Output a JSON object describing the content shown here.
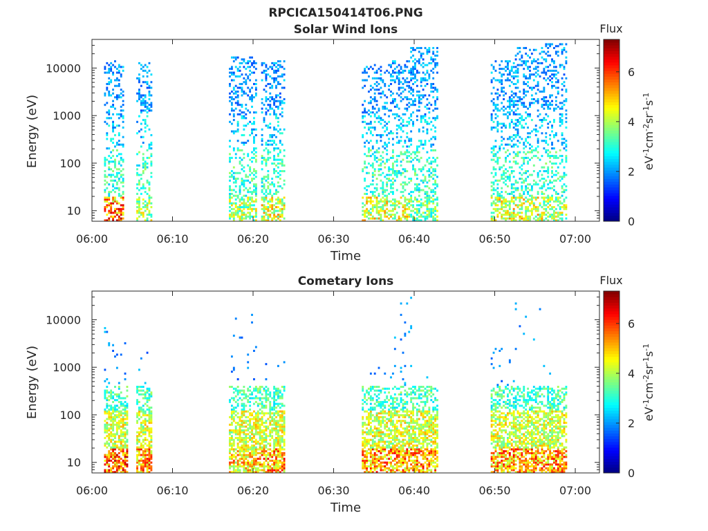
{
  "figure": {
    "title": "RPCICA150414T06.PNG"
  },
  "chart_data": [
    {
      "type": "heatmap",
      "title": "Solar Wind Ions",
      "xlabel": "Time",
      "ylabel": "Energy (eV)",
      "xlim": [
        "06:00",
        "07:03"
      ],
      "ylim": [
        6,
        40000
      ],
      "yscale": "log",
      "xticks": [
        "06:00",
        "06:10",
        "06:20",
        "06:30",
        "06:40",
        "06:50",
        "07:00"
      ],
      "yticks": [
        "10",
        "100",
        "1000",
        "10000"
      ],
      "colorbar": {
        "label": "Flux",
        "units": "eV-1cm-2sr-1s-1",
        "range": [
          0,
          7.3
        ],
        "ticks": [
          "0",
          "2",
          "4",
          "6"
        ]
      },
      "bursts": [
        {
          "start": "06:01.5",
          "end": "06:04.0",
          "peak_flux": 7.0,
          "max_energy_eV": 15000
        },
        {
          "start": "06:05.5",
          "end": "06:07.5",
          "peak_flux": 5.0,
          "max_energy_eV": 13000
        },
        {
          "start": "06:17.0",
          "end": "06:20.5",
          "peak_flux": 5.0,
          "max_energy_eV": 18000
        },
        {
          "start": "06:21.0",
          "end": "06:24.0",
          "peak_flux": 5.5,
          "max_energy_eV": 14000
        },
        {
          "start": "06:33.5",
          "end": "06:37.0",
          "peak_flux": 5.5,
          "max_energy_eV": 12000
        },
        {
          "start": "06:37.0",
          "end": "06:39.5",
          "peak_flux": 5.5,
          "max_energy_eV": 15000
        },
        {
          "start": "06:39.5",
          "end": "06:43.0",
          "peak_flux": 4.5,
          "max_energy_eV": 28000
        },
        {
          "start": "06:49.5",
          "end": "06:52.5",
          "peak_flux": 5.5,
          "max_energy_eV": 15000
        },
        {
          "start": "06:52.5",
          "end": "06:56.0",
          "peak_flux": 5.5,
          "max_energy_eV": 27000
        },
        {
          "start": "06:56.0",
          "end": "06:59.0",
          "peak_flux": 5.0,
          "max_energy_eV": 32000
        }
      ]
    },
    {
      "type": "heatmap",
      "title": "Cometary Ions",
      "xlabel": "Time",
      "ylabel": "Energy (eV)",
      "xlim": [
        "06:00",
        "07:03"
      ],
      "ylim": [
        6,
        40000
      ],
      "yscale": "log",
      "xticks": [
        "06:00",
        "06:10",
        "06:20",
        "06:30",
        "06:40",
        "06:50",
        "07:00"
      ],
      "yticks": [
        "10",
        "100",
        "1000",
        "10000"
      ],
      "colorbar": {
        "label": "Flux",
        "units": "eV-1cm-2sr-1s-1",
        "range": [
          0,
          7.3
        ],
        "ticks": [
          "0",
          "2",
          "4",
          "6"
        ]
      },
      "bursts": [
        {
          "start": "06:01.5",
          "end": "06:04.5",
          "peak_flux": 7.0,
          "max_energy_eV": 7000
        },
        {
          "start": "06:05.5",
          "end": "06:07.5",
          "peak_flux": 6.5,
          "max_energy_eV": 2600
        },
        {
          "start": "06:17.0",
          "end": "06:20.5",
          "peak_flux": 6.0,
          "max_energy_eV": 20000
        },
        {
          "start": "06:20.5",
          "end": "06:24.0",
          "peak_flux": 6.5,
          "max_energy_eV": 2600
        },
        {
          "start": "06:33.5",
          "end": "06:37.0",
          "peak_flux": 6.5,
          "max_energy_eV": 1500
        },
        {
          "start": "06:37.0",
          "end": "06:40.0",
          "peak_flux": 6.5,
          "max_energy_eV": 30000
        },
        {
          "start": "06:40.0",
          "end": "06:43.0",
          "peak_flux": 6.5,
          "max_energy_eV": 1000
        },
        {
          "start": "06:49.5",
          "end": "06:52.5",
          "peak_flux": 6.5,
          "max_energy_eV": 3500
        },
        {
          "start": "06:52.5",
          "end": "06:56.0",
          "peak_flux": 6.5,
          "max_energy_eV": 24000
        },
        {
          "start": "06:56.0",
          "end": "06:59.0",
          "peak_flux": 6.5,
          "max_energy_eV": 1400
        }
      ]
    }
  ]
}
